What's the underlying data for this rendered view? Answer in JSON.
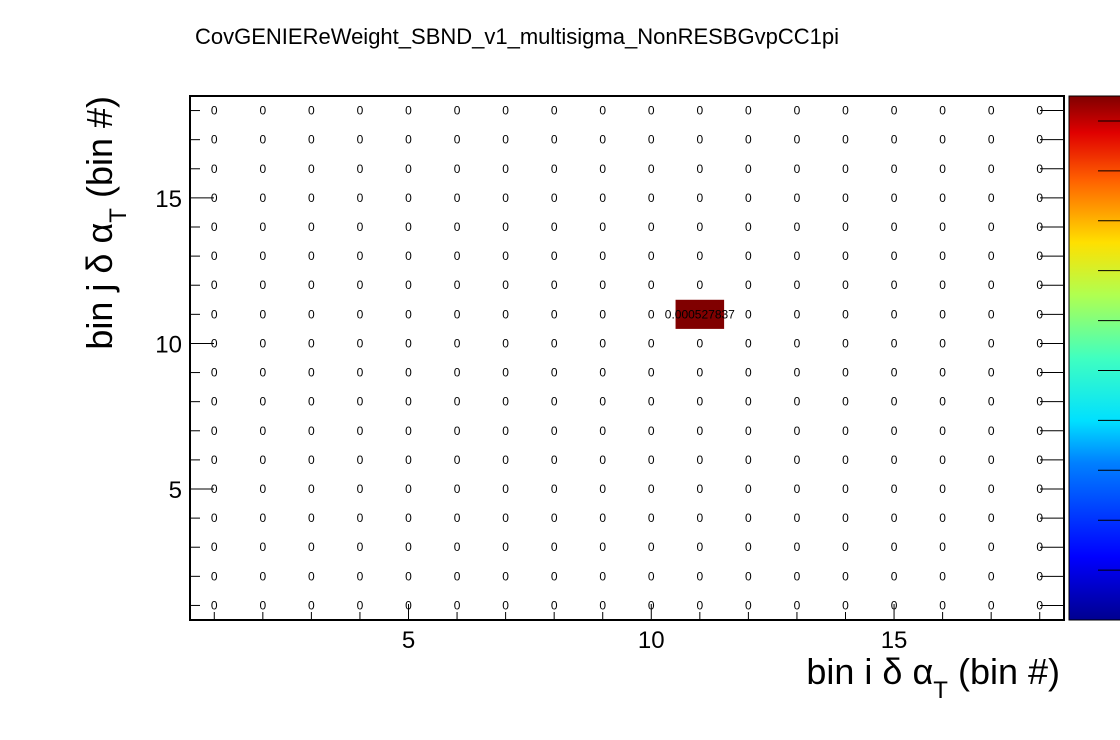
{
  "chart_data": {
    "type": "heatmap",
    "title": "CovGENIEReWeight_SBND_v1_multisigma_NonRESBGvpCC1pi",
    "xlabel": {
      "pre": "bin i δ α",
      "sub": "T",
      "post": " (bin #)"
    },
    "ylabel": {
      "pre": "bin j δ α",
      "sub": "T",
      "post": " (bin #)"
    },
    "xlim": [
      0.5,
      18.5
    ],
    "ylim": [
      0.5,
      18.5
    ],
    "n_bins_x": 18,
    "n_bins_y": 18,
    "x_ticks": [
      5,
      10,
      15
    ],
    "y_ticks": [
      5,
      10,
      15
    ],
    "default_value": 0,
    "default_label": "0",
    "nonzero_cells": [
      {
        "i": 11,
        "j": 11,
        "value": 0.000527837,
        "label": "0.000527837",
        "color": "#800000"
      }
    ],
    "colorscale": "jet",
    "colorbar": {
      "ticks_shown": false
    }
  }
}
